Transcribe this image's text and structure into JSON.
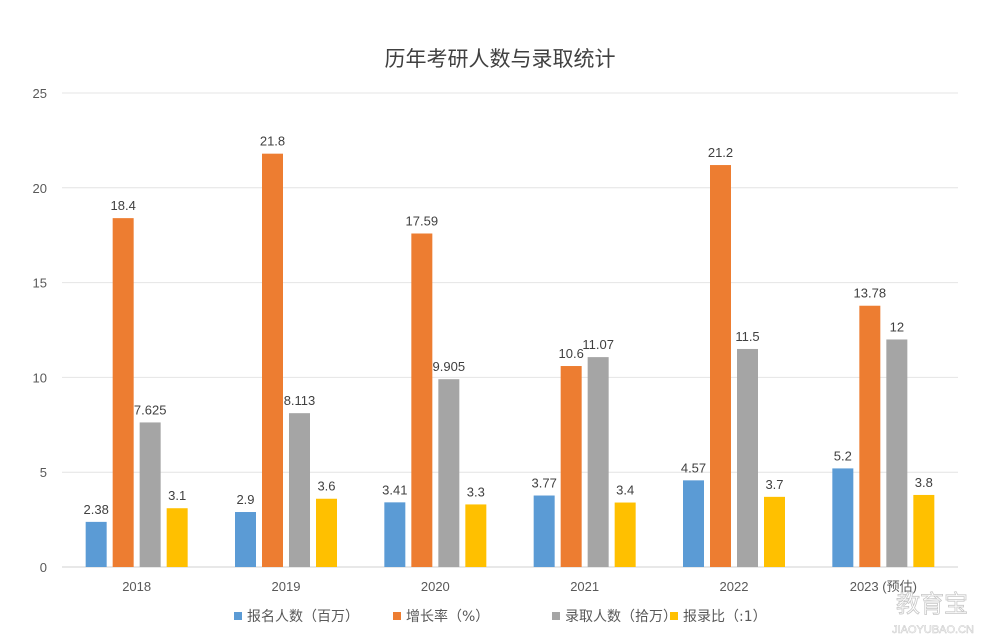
{
  "chart_data": {
    "type": "bar",
    "title": "历年考研人数与录取统计",
    "categories": [
      "2018",
      "2019",
      "2020",
      "2021",
      "2022",
      "2023 (预估)"
    ],
    "ylim": [
      0,
      25
    ],
    "yticks": [
      "0",
      "5",
      "10",
      "15",
      "20",
      "25"
    ],
    "grid": true,
    "legend_position": "bottom",
    "series": [
      {
        "name": "报名人数（百万）",
        "color": "#5B9BD5",
        "values": [
          2.38,
          2.9,
          3.41,
          3.77,
          4.57,
          5.2
        ],
        "labels": [
          "2.38",
          "2.9",
          "3.41",
          "3.77",
          "4.57",
          "5.2"
        ]
      },
      {
        "name": "增长率（%）",
        "color": "#ED7D31",
        "values": [
          18.4,
          21.8,
          17.59,
          10.6,
          21.2,
          13.78
        ],
        "labels": [
          "18.4",
          "21.8",
          "17.59",
          "10.6",
          "21.2",
          "13.78"
        ]
      },
      {
        "name": "录取人数（拾万）",
        "color": "#A5A5A5",
        "values": [
          7.625,
          8.113,
          9.905,
          11.07,
          11.5,
          12
        ],
        "labels": [
          "7.625",
          "8.113",
          "9.905",
          "11.07",
          "11.5",
          "12"
        ]
      },
      {
        "name": "报录比（:1）",
        "color": "#FFC000",
        "values": [
          3.1,
          3.6,
          3.3,
          3.4,
          3.7,
          3.8
        ],
        "labels": [
          "3.1",
          "3.6",
          "3.3",
          "3.4",
          "3.7",
          "3.8"
        ]
      }
    ]
  },
  "watermark": {
    "main": "教育宝",
    "url": "JIAOYUBAO.CN"
  }
}
